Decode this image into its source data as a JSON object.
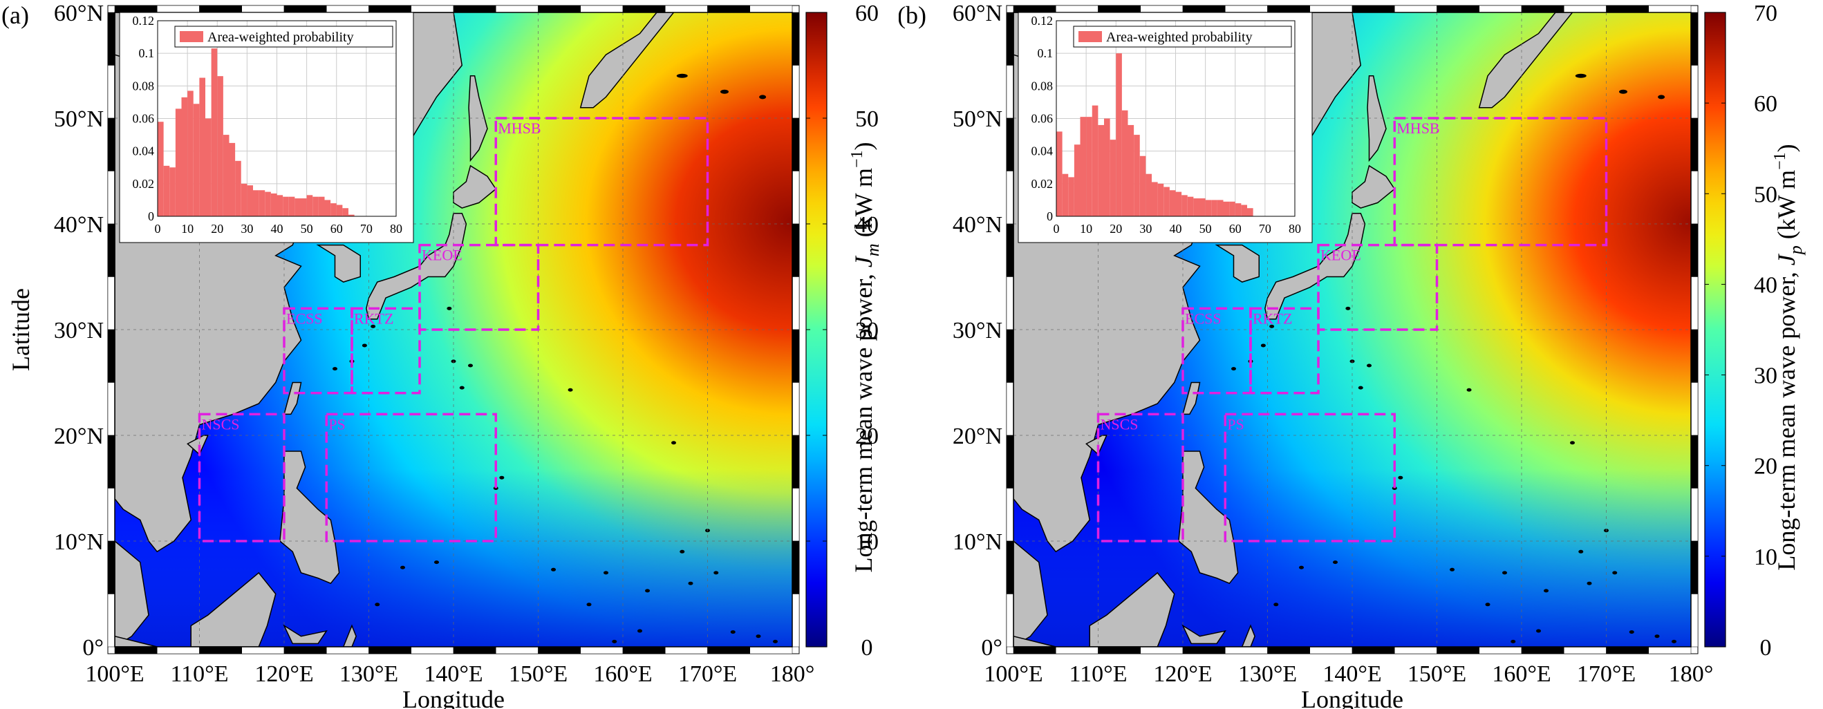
{
  "panels": [
    {
      "id": "a",
      "tag": "(a)",
      "colorbar_label_main": "Long-term mean wave power, ",
      "colorbar_symbol": "J",
      "colorbar_subscript": "m",
      "colorbar_unit": "(kW m",
      "colorbar_unit_exp": "−1",
      "colorbar_unit_close": ")",
      "colorbar_ticks": [
        "0",
        "10",
        "20",
        "30",
        "40",
        "50",
        "60"
      ],
      "colorbar_max": 60,
      "inset": {
        "legend": "Area-weighted probability",
        "yticks": [
          "0",
          "0.02",
          "0.04",
          "0.06",
          "0.08",
          "0.1",
          "0.12"
        ],
        "xticks": [
          "0",
          "10",
          "20",
          "30",
          "40",
          "50",
          "60",
          "70",
          "80"
        ],
        "bars": [
          0.058,
          0.031,
          0.03,
          0.066,
          0.073,
          0.077,
          0.069,
          0.085,
          0.06,
          0.103,
          0.086,
          0.05,
          0.045,
          0.034,
          0.02,
          0.019,
          0.016,
          0.016,
          0.015,
          0.014,
          0.013,
          0.012,
          0.012,
          0.011,
          0.011,
          0.013,
          0.012,
          0.012,
          0.01,
          0.008,
          0.007,
          0.005,
          0.001
        ]
      }
    },
    {
      "id": "b",
      "tag": "(b)",
      "colorbar_label_main": "Long-term mean wave power, ",
      "colorbar_symbol": "J",
      "colorbar_subscript": "p",
      "colorbar_unit": "(kW m",
      "colorbar_unit_exp": "−1",
      "colorbar_unit_close": ")",
      "colorbar_ticks": [
        "0",
        "10",
        "20",
        "30",
        "40",
        "50",
        "60",
        "70"
      ],
      "colorbar_max": 70,
      "inset": {
        "legend": "Area-weighted probability",
        "yticks": [
          "0",
          "0.02",
          "0.04",
          "0.06",
          "0.08",
          "0.1",
          "0.12"
        ],
        "xticks": [
          "0",
          "10",
          "20",
          "30",
          "40",
          "50",
          "60",
          "70",
          "80"
        ],
        "bars": [
          0.052,
          0.026,
          0.024,
          0.044,
          0.061,
          0.061,
          0.068,
          0.056,
          0.06,
          0.047,
          0.1,
          0.065,
          0.056,
          0.05,
          0.037,
          0.026,
          0.021,
          0.02,
          0.018,
          0.016,
          0.015,
          0.013,
          0.012,
          0.011,
          0.011,
          0.01,
          0.01,
          0.01,
          0.009,
          0.009,
          0.008,
          0.007,
          0.005
        ]
      }
    }
  ],
  "axes": {
    "xlabel": "Longitude",
    "ylabel": "Latitude",
    "xticks": [
      "100°E",
      "110°E",
      "120°E",
      "130°E",
      "140°E",
      "150°E",
      "160°E",
      "170°E",
      "180°"
    ],
    "yticks": [
      "0°",
      "10°N",
      "20°N",
      "30°N",
      "40°N",
      "50°N",
      "60°N"
    ]
  },
  "regions": [
    {
      "label": "MHSB",
      "lon": [
        145,
        170
      ],
      "lat": [
        38,
        50
      ]
    },
    {
      "label": "KEOE",
      "lon": [
        136,
        150
      ],
      "lat": [
        30,
        38
      ]
    },
    {
      "label": "ECSS",
      "lon": [
        120,
        128
      ],
      "lat": [
        24,
        32
      ]
    },
    {
      "label": "RKTZ",
      "lon": [
        128,
        136
      ],
      "lat": [
        24,
        32
      ]
    },
    {
      "label": "NSCS",
      "lon": [
        110,
        120
      ],
      "lat": [
        10,
        22
      ]
    },
    {
      "label": "PS",
      "lon": [
        125,
        145
      ],
      "lat": [
        10,
        22
      ]
    }
  ],
  "colors": {
    "region_outline": "#e020e0",
    "land": "#bebebe",
    "bar": "#f26a6a"
  },
  "chart_data": [
    {
      "type": "heatmap",
      "title": "(a)",
      "xlabel": "Longitude",
      "ylabel": "Latitude",
      "xlim": [
        100,
        180
      ],
      "ylim": [
        0,
        60
      ],
      "colorbar_range": [
        0,
        60
      ]
    },
    {
      "type": "bar",
      "title": "",
      "xlim": [
        0,
        80
      ],
      "ylim": [
        0,
        0.12
      ],
      "legend": "Area-weighted probability"
    },
    {
      "type": "heatmap",
      "title": "(b)",
      "xlabel": "Longitude",
      "ylabel": "Latitude",
      "xlim": [
        100,
        180
      ],
      "ylim": [
        0,
        60
      ],
      "colorbar_range": [
        0,
        70
      ]
    },
    {
      "type": "bar",
      "title": "",
      "xlim": [
        0,
        80
      ],
      "ylim": [
        0,
        0.12
      ],
      "legend": "Area-weighted probability"
    }
  ]
}
